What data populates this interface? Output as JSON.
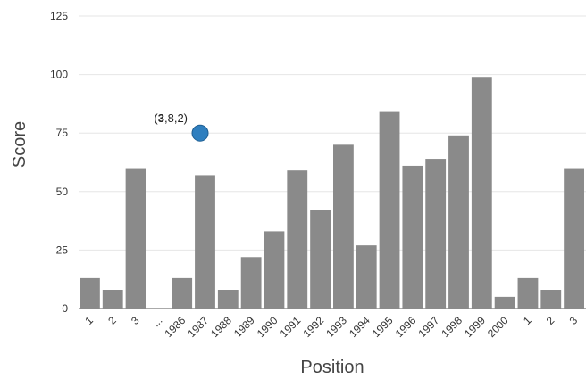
{
  "chart_data": {
    "type": "bar",
    "title": "",
    "xlabel": "Position",
    "ylabel": "Score",
    "ylim": [
      0,
      125
    ],
    "yticks": [
      0,
      25,
      50,
      75,
      100,
      125
    ],
    "grid": true,
    "legend": "none",
    "categories": [
      "1",
      "2",
      "3",
      "...",
      "1986",
      "1987",
      "1988",
      "1989",
      "1990",
      "1991",
      "1992",
      "1993",
      "1994",
      "1995",
      "1996",
      "1997",
      "1998",
      "1999",
      "2000",
      "1",
      "2",
      "3"
    ],
    "values": [
      13,
      8,
      60,
      0,
      13,
      57,
      8,
      22,
      33,
      59,
      42,
      70,
      27,
      84,
      61,
      64,
      74,
      99,
      5,
      13,
      8,
      60
    ],
    "bar_color": "#8a8a8a",
    "gridline_color": "#e6e6e6",
    "annotation": {
      "text_prefix": "(",
      "text_bold": "3",
      "text_suffix": ",8,2)",
      "point_category_index": 5,
      "point_value": 75,
      "marker_color": "#2f7fbf"
    }
  }
}
